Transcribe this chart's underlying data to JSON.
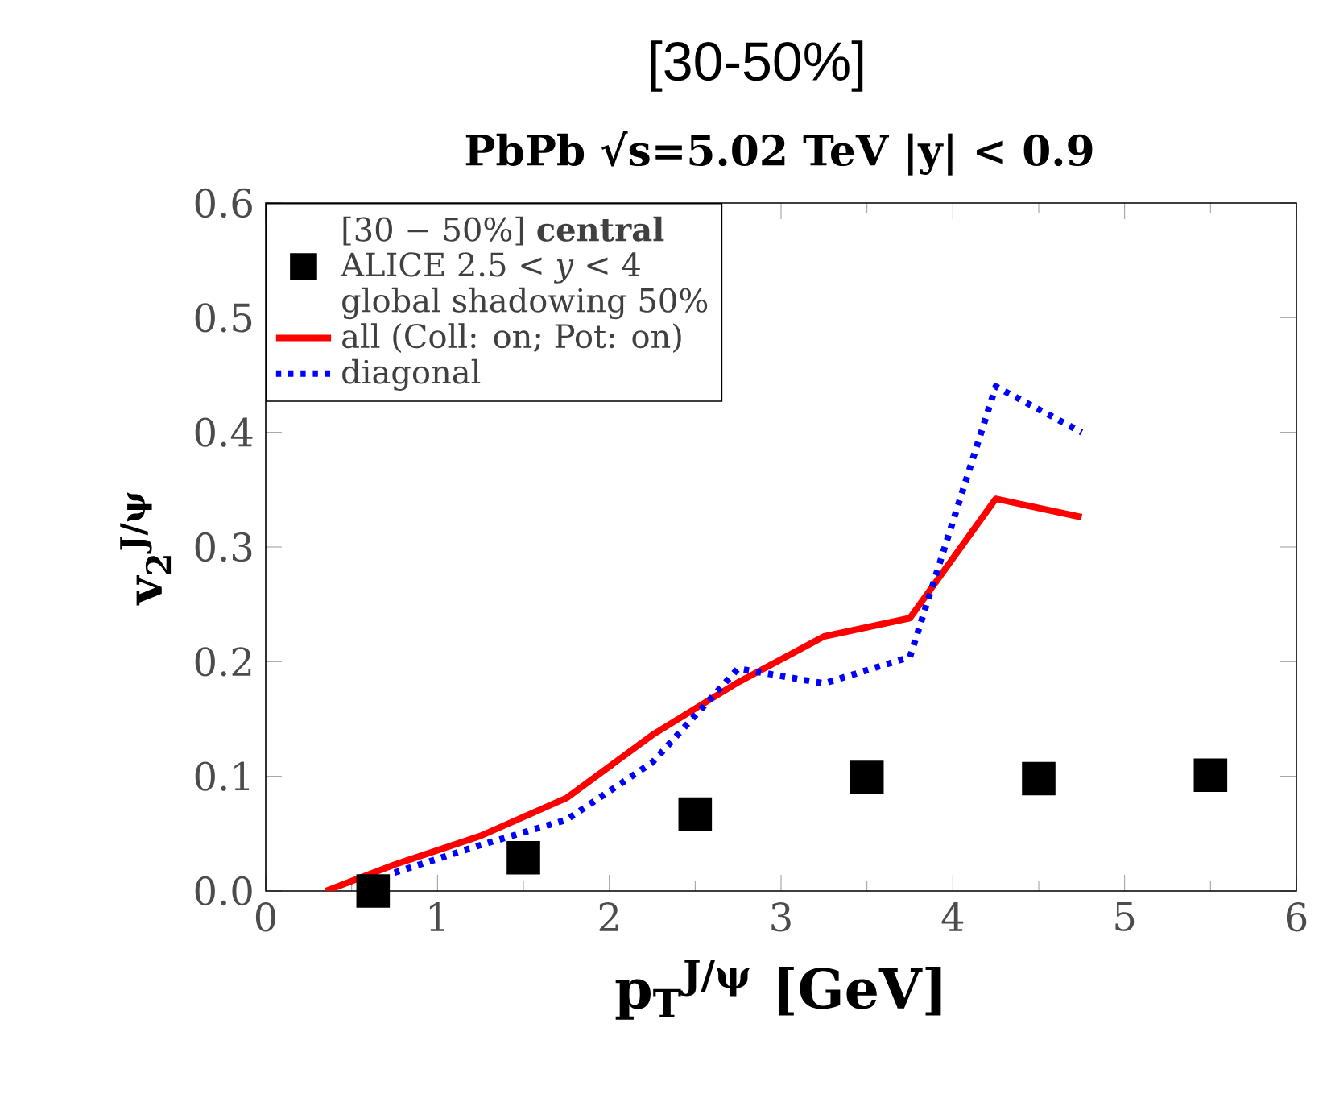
{
  "chart_data": {
    "type": "line",
    "title": "[30-50%]",
    "subtitle": "PbPb √s=5.02 TeV |y| < 0.9",
    "xlabel": "p$_{T}$$^{J/ψ}$ [GeV]",
    "ylabel": "v$_{2}$$^{J/ψ}$",
    "legend_title": "[30 − 50%] **central**",
    "annotations": [
      "global shadowing 50%"
    ],
    "xlim": [
      0,
      6
    ],
    "ylim": [
      0,
      0.6
    ],
    "xticks": [
      0,
      1,
      2,
      3,
      4,
      5,
      6
    ],
    "yticks": [
      {
        "value": 0,
        "label": "0.0"
      },
      {
        "value": 0.1,
        "label": "0.1"
      },
      {
        "value": 0.2,
        "label": "0.2"
      },
      {
        "value": 0.3,
        "label": "0.3"
      },
      {
        "value": 0.4,
        "label": "0.4"
      },
      {
        "value": 0.5,
        "label": "0.5"
      },
      {
        "value": 0.6,
        "label": "0.6"
      }
    ],
    "grid": false,
    "legend": "top left",
    "series": [
      {
        "name": "ALICE 2.5 < *y* < 4",
        "type": "scatter",
        "marker": "square",
        "color": "#000000",
        "x": [
          0.625,
          1.5,
          2.5,
          3.5,
          4.5,
          5.5
        ],
        "values": [
          0.0,
          0.029,
          0.067,
          0.099,
          0.098,
          0.101
        ]
      },
      {
        "name": "all (Coll: on; Pot: on)",
        "line_style": "solid",
        "color": "#ff0000",
        "x": [
          0.35,
          0.75,
          1.25,
          1.75,
          2.25,
          2.75,
          3.25,
          3.75,
          4.25,
          4.75
        ],
        "values": [
          0.0,
          0.023,
          0.048,
          0.081,
          0.136,
          0.182,
          0.222,
          0.238,
          0.342,
          0.326
        ]
      },
      {
        "name": "diagonal",
        "line_style": "dotted",
        "color": "#0000ff",
        "x": [
          0.75,
          1.25,
          1.75,
          2.25,
          2.75,
          3.25,
          3.75,
          4.25,
          4.75
        ],
        "values": [
          0.016,
          0.04,
          0.062,
          0.112,
          0.194,
          0.181,
          0.204,
          0.44,
          0.4
        ]
      }
    ]
  }
}
